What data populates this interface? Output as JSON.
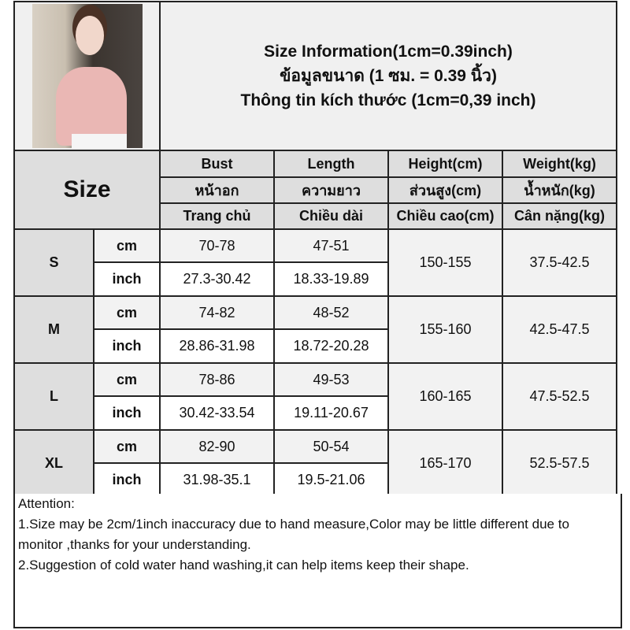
{
  "header": {
    "title_lines": [
      "Size Information(1cm=0.39inch)",
      "ข้อมูลขนาด (1 ซม. = 0.39 นิ้ว)",
      "Thông tin kích thước (1cm=0,39 inch)"
    ]
  },
  "table": {
    "size_label": "Size",
    "columns": [
      [
        "Bust",
        "หน้าอก",
        "Trang chủ"
      ],
      [
        "Length",
        "ความยาว",
        "Chiều dài"
      ],
      [
        "Height(cm)",
        "ส่วนสูง(cm)",
        "Chiều cao(cm)"
      ],
      [
        "Weight(kg)",
        "น้ำหนัก(kg)",
        "Cân nặng(kg)"
      ]
    ],
    "unit_cm": "cm",
    "unit_inch": "inch",
    "rows": [
      {
        "size": "S",
        "bust_cm": "70-78",
        "length_cm": "47-51",
        "bust_inch": "27.3-30.42",
        "length_inch": "18.33-19.89",
        "height": "150-155",
        "weight": "37.5-42.5"
      },
      {
        "size": "M",
        "bust_cm": "74-82",
        "length_cm": "48-52",
        "bust_inch": "28.86-31.98",
        "length_inch": "18.72-20.28",
        "height": "155-160",
        "weight": "42.5-47.5"
      },
      {
        "size": "L",
        "bust_cm": "78-86",
        "length_cm": "49-53",
        "bust_inch": "30.42-33.54",
        "length_inch": "19.11-20.67",
        "height": "160-165",
        "weight": "47.5-52.5"
      },
      {
        "size": "XL",
        "bust_cm": "82-90",
        "length_cm": "50-54",
        "bust_inch": "31.98-35.1",
        "length_inch": "19.5-21.06",
        "height": "165-170",
        "weight": "52.5-57.5"
      }
    ]
  },
  "attention": {
    "heading": "Attention:",
    "notes": [
      "1.Size may be 2cm/1inch inaccuracy due to hand measure,Color may be little different due to monitor ,thanks for your understanding.",
      "2.Suggestion of cold water hand washing,it can help items keep their shape."
    ]
  }
}
